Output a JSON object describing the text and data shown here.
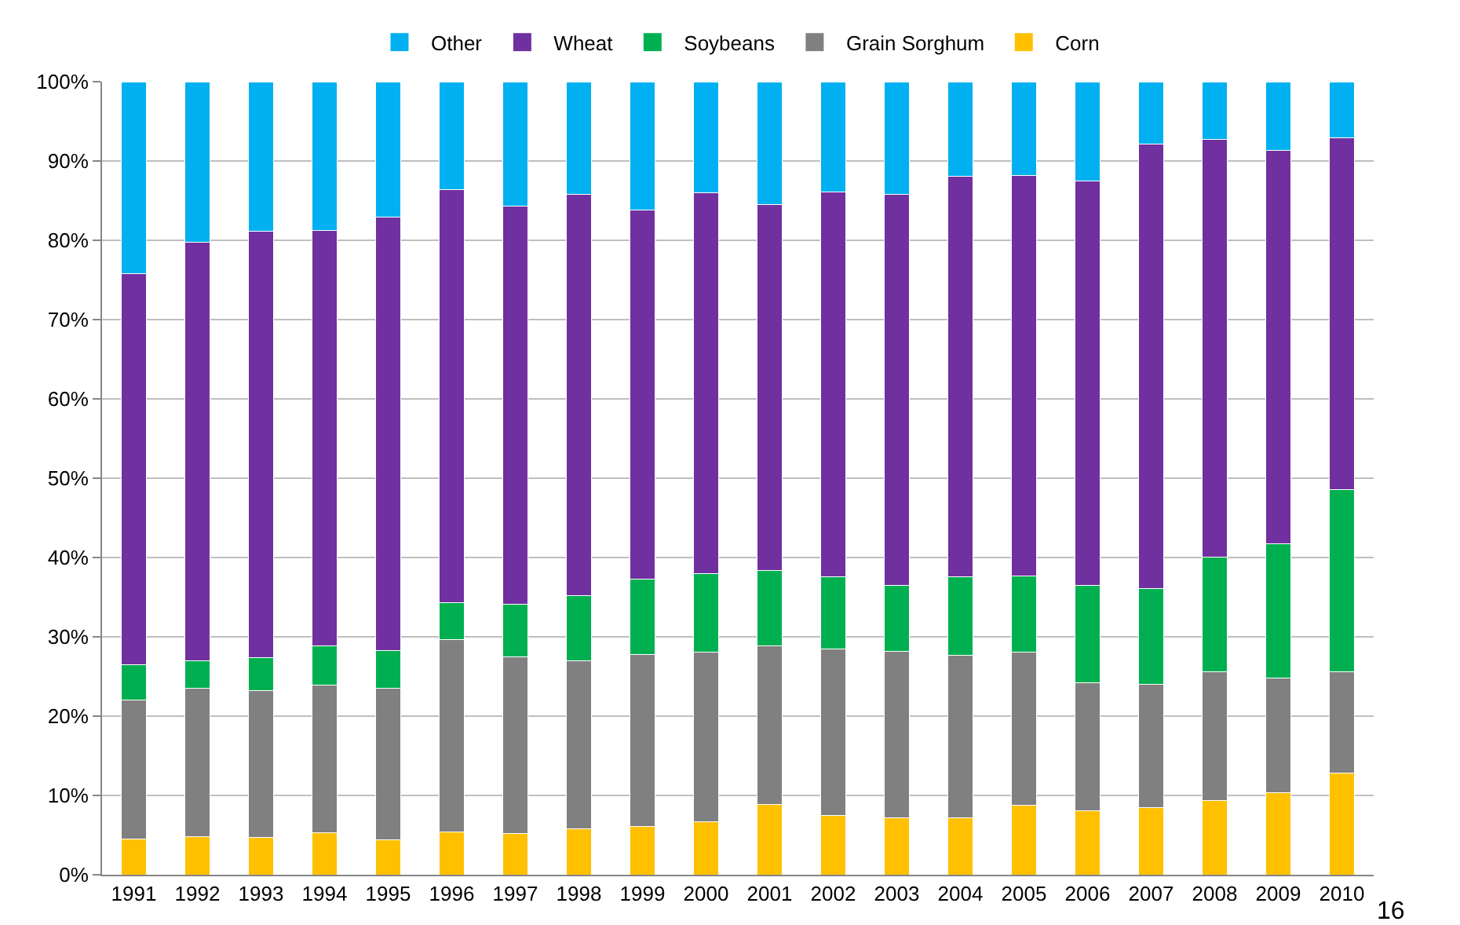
{
  "chart_data": {
    "type": "bar",
    "stacked": true,
    "categories": [
      "1991",
      "1992",
      "1993",
      "1994",
      "1995",
      "1996",
      "1997",
      "1998",
      "1999",
      "2000",
      "2001",
      "2002",
      "2003",
      "2004",
      "2005",
      "2006",
      "2007",
      "2008",
      "2009",
      "2010"
    ],
    "series": [
      {
        "name": "Corn",
        "color": "#ffc000",
        "values": [
          4.5,
          4.8,
          4.7,
          5.3,
          4.4,
          5.4,
          5.2,
          5.8,
          6.1,
          6.7,
          8.9,
          7.5,
          7.2,
          7.2,
          8.8,
          8.1,
          8.5,
          9.4,
          10.3,
          12.8
        ]
      },
      {
        "name": "Grain Sorghum",
        "color": "#808080",
        "values": [
          17.5,
          18.7,
          18.5,
          18.6,
          19.1,
          24.3,
          22.3,
          21.2,
          21.7,
          21.4,
          20.0,
          21.0,
          21.0,
          20.5,
          19.3,
          16.1,
          15.5,
          16.2,
          14.5,
          12.8
        ]
      },
      {
        "name": "Soybeans",
        "color": "#00b050",
        "values": [
          4.5,
          3.5,
          4.2,
          5.0,
          4.8,
          4.6,
          6.6,
          8.2,
          9.5,
          9.9,
          9.5,
          9.1,
          8.3,
          9.9,
          9.6,
          12.3,
          12.1,
          14.5,
          16.9,
          23.0
        ]
      },
      {
        "name": "Wheat",
        "color": "#7030a0",
        "values": [
          49.3,
          52.8,
          53.7,
          52.3,
          54.6,
          52.1,
          50.2,
          50.6,
          46.5,
          48.0,
          46.1,
          48.5,
          49.3,
          50.5,
          50.5,
          51.0,
          56.0,
          52.6,
          49.6,
          44.3
        ]
      },
      {
        "name": "Other",
        "color": "#00b0f0",
        "values": [
          24.2,
          20.2,
          18.9,
          18.8,
          17.1,
          13.6,
          15.7,
          14.2,
          16.2,
          14.0,
          15.5,
          13.9,
          14.2,
          11.9,
          11.8,
          12.5,
          7.9,
          7.3,
          8.7,
          7.1
        ]
      }
    ],
    "ylim": [
      0,
      100
    ],
    "yticks": [
      {
        "value": 0,
        "label": "0%"
      },
      {
        "value": 10,
        "label": "10%"
      },
      {
        "value": 20,
        "label": "20%"
      },
      {
        "value": 30,
        "label": "30%"
      },
      {
        "value": 40,
        "label": "40%"
      },
      {
        "value": 50,
        "label": "50%"
      },
      {
        "value": 60,
        "label": "60%"
      },
      {
        "value": 70,
        "label": "70%"
      },
      {
        "value": 80,
        "label": "80%"
      },
      {
        "value": 90,
        "label": "90%"
      },
      {
        "value": 100,
        "label": "100%"
      }
    ],
    "grid": "y",
    "legend": "top",
    "annotations": [
      "16"
    ]
  }
}
